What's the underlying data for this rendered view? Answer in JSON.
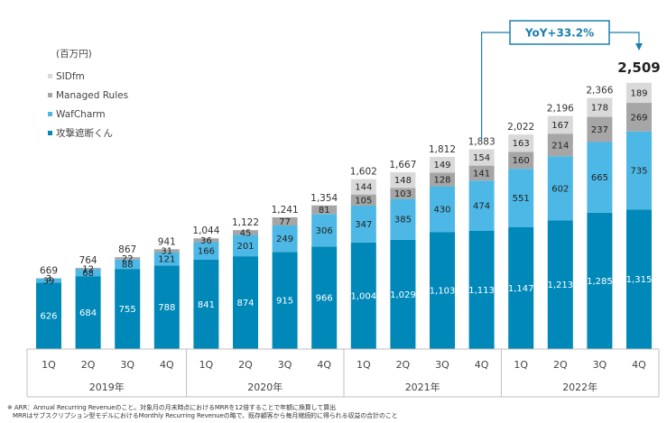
{
  "chart_data": {
    "type": "bar",
    "stacked": true,
    "unit_label": "(百万円)",
    "categories": [
      "1Q",
      "2Q",
      "3Q",
      "4Q",
      "1Q",
      "2Q",
      "3Q",
      "4Q",
      "1Q",
      "2Q",
      "3Q",
      "4Q",
      "1Q",
      "2Q",
      "3Q",
      "4Q"
    ],
    "years": [
      {
        "label": "2019年",
        "start": 0,
        "end": 3
      },
      {
        "label": "2020年",
        "start": 4,
        "end": 7
      },
      {
        "label": "2021年",
        "start": 8,
        "end": 11
      },
      {
        "label": "2022年",
        "start": 12,
        "end": 15
      }
    ],
    "series": [
      {
        "name": "攻撃遮断くん",
        "color": "#0088b8",
        "label_color": "#ffffff",
        "values": [
          626,
          684,
          755,
          788,
          841,
          874,
          915,
          966,
          1004,
          1029,
          1103,
          1113,
          1147,
          1213,
          1285,
          1315
        ],
        "labels": [
          "626",
          "684",
          "755",
          "788",
          "841",
          "874",
          "915",
          "966",
          "1,004",
          "1,029",
          "1,103",
          "1,113",
          "1,147",
          "1,213",
          "1,285",
          "1,315"
        ]
      },
      {
        "name": "WafCharm",
        "color": "#4db8e6",
        "label_color": "#222222",
        "values": [
          39,
          68,
          88,
          121,
          166,
          201,
          249,
          306,
          347,
          385,
          430,
          474,
          551,
          602,
          665,
          735
        ],
        "labels": [
          "39",
          "68",
          "88",
          "121",
          "166",
          "201",
          "249",
          "306",
          "347",
          "385",
          "430",
          "474",
          "551",
          "602",
          "665",
          "735"
        ]
      },
      {
        "name": "Managed Rules",
        "color": "#a6a6a6",
        "label_color": "#222222",
        "values": [
          3,
          12,
          22,
          31,
          36,
          45,
          77,
          81,
          105,
          103,
          128,
          141,
          160,
          214,
          237,
          269
        ],
        "labels": [
          "3",
          "12",
          "22",
          "31",
          "36",
          "45",
          "77",
          "81",
          "105",
          "103",
          "128",
          "141",
          "160",
          "214",
          "237",
          "269"
        ]
      },
      {
        "name": "SIDfm",
        "color": "#d9d9d9",
        "label_color": "#222222",
        "values": [
          0,
          0,
          0,
          0,
          0,
          0,
          0,
          0,
          144,
          148,
          149,
          154,
          163,
          167,
          178,
          189
        ],
        "labels": [
          "",
          "",
          "",
          "",
          "",
          "",
          "",
          "",
          "144",
          "148",
          "149",
          "154",
          "163",
          "167",
          "178",
          "189"
        ]
      }
    ],
    "totals": [
      "669",
      "764",
      "867",
      "941",
      "1,044",
      "1,122",
      "1,241",
      "1,354",
      "1,602",
      "1,667",
      "1,812",
      "1,883",
      "2,022",
      "2,196",
      "2,366",
      "2,509"
    ],
    "legend": [
      "SIDfm",
      "Managed Rules",
      "WafCharm",
      "攻撃遮断くん"
    ],
    "annotation": "YoY+33.2%",
    "ylim": [
      0,
      2800
    ]
  },
  "notes": [
    "※ ARR：Annual Recurring Revenueのこと。対象月の月末時点におけるMRRを12倍することで年額に換算して算出",
    "MRRはサブスクリプション型モデルにおけるMonthly Recurring Revenueの略で、既存顧客から毎月継続的に得られる収益の合計のこと"
  ]
}
